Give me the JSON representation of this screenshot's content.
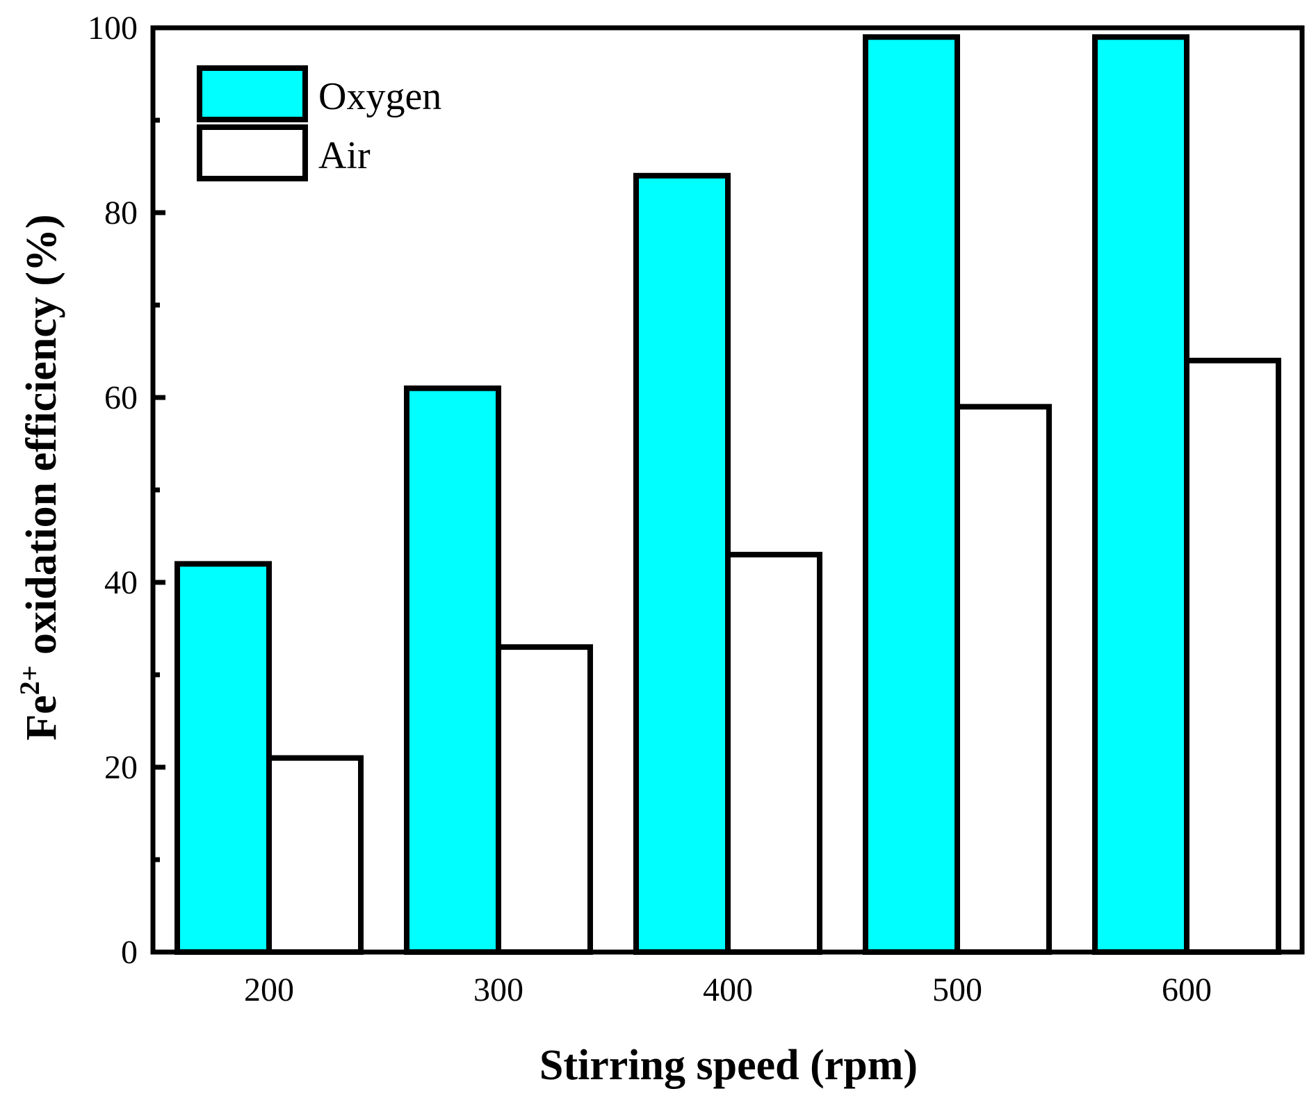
{
  "chart_data": {
    "type": "bar",
    "title": "",
    "xlabel": "Stirring speed (rpm)",
    "ylabel_main": "Fe",
    "ylabel_sup": "2+",
    "ylabel_rest": " oxidation efficiency (%)",
    "categories": [
      "200",
      "300",
      "400",
      "500",
      "600"
    ],
    "series": [
      {
        "name": "Oxygen",
        "color": "#00ffff",
        "values": [
          42,
          61,
          84,
          99,
          99
        ]
      },
      {
        "name": "Air",
        "color": "#ffffff",
        "values": [
          21,
          33,
          43,
          59,
          64
        ]
      }
    ],
    "ylim": [
      0,
      100
    ],
    "yticks": [
      "0",
      "20",
      "40",
      "60",
      "80",
      "100"
    ],
    "grid": false,
    "legend_position": "top-left"
  }
}
